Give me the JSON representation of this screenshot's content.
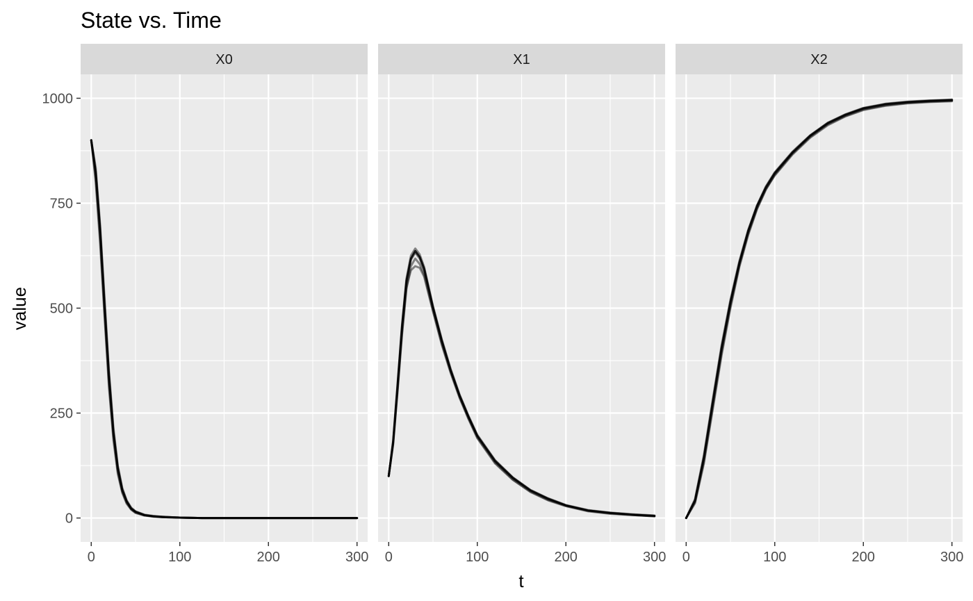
{
  "chart_data": {
    "type": "line",
    "title": "State vs. Time",
    "xlabel": "t",
    "ylabel": "value",
    "facet_layout": "1 row x 3 columns, shared y axis",
    "grid": true,
    "legend": "none",
    "x_ticks": [
      0,
      100,
      200,
      300
    ],
    "x_ticklabels": [
      "0",
      "100",
      "200",
      "300"
    ],
    "y_ticks": [
      0,
      250,
      500,
      750,
      1000
    ],
    "y_ticklabels": [
      "0",
      "250",
      "500",
      "750",
      "1000"
    ],
    "xlim": [
      -12,
      312
    ],
    "ylim": [
      -57,
      1057
    ],
    "colors": {
      "panel_background": "#ebebeb",
      "strip_background": "#d9d9d9",
      "grid": "#ffffff",
      "line": "#000000"
    },
    "panels": [
      {
        "label": "X0",
        "series": [
          {
            "x": [
              0,
              5,
              10,
              15,
              20,
              25,
              30,
              35,
              40,
              45,
              50,
              60,
              70,
              80,
              100,
              125,
              150,
              200,
              250,
              300
            ],
            "y": [
              900,
              820,
              680,
              500,
              330,
              200,
              115,
              65,
              38,
              22,
              14,
              7,
              4,
              2,
              1,
              0,
              0,
              0,
              0,
              0
            ]
          },
          {
            "x": [
              0,
              5,
              10,
              15,
              20,
              25,
              30,
              35,
              40,
              45,
              50,
              60,
              70,
              80,
              100,
              125,
              150,
              200,
              250,
              300
            ],
            "y": [
              900,
              800,
              655,
              480,
              310,
              185,
              105,
              60,
              34,
              20,
              12,
              6,
              3,
              2,
              1,
              0,
              0,
              0,
              0,
              0
            ]
          },
          {
            "x": [
              0,
              5,
              10,
              15,
              20,
              25,
              30,
              35,
              40,
              45,
              50,
              60,
              70,
              80,
              100,
              125,
              150,
              200,
              250,
              300
            ],
            "y": [
              900,
              835,
              700,
              525,
              350,
              215,
              125,
              72,
              42,
              25,
              16,
              8,
              5,
              3,
              1,
              0,
              0,
              0,
              0,
              0
            ]
          },
          {
            "x": [
              0,
              5,
              10,
              15,
              20,
              25,
              30,
              35,
              40,
              45,
              50,
              60,
              70,
              80,
              100,
              125,
              150,
              200,
              250,
              300
            ],
            "y": [
              900,
              810,
              670,
              490,
              320,
              195,
              110,
              63,
              36,
              21,
              13,
              6,
              4,
              2,
              1,
              0,
              0,
              0,
              0,
              0
            ]
          },
          {
            "x": [
              0,
              5,
              10,
              15,
              20,
              25,
              30,
              35,
              40,
              45,
              50,
              60,
              70,
              80,
              100,
              125,
              150,
              200,
              250,
              300
            ],
            "y": [
              900,
              825,
              690,
              510,
              340,
              205,
              120,
              68,
              40,
              23,
              15,
              7,
              4,
              3,
              1,
              0,
              0,
              0,
              0,
              0
            ]
          }
        ]
      },
      {
        "label": "X1",
        "series": [
          {
            "x": [
              0,
              5,
              10,
              15,
              20,
              25,
              30,
              35,
              40,
              50,
              60,
              70,
              80,
              90,
              100,
              120,
              140,
              160,
              180,
              200,
              225,
              250,
              275,
              300
            ],
            "y": [
              100,
              180,
              310,
              450,
              560,
              615,
              632,
              618,
              590,
              500,
              420,
              350,
              290,
              240,
              195,
              135,
              95,
              65,
              45,
              30,
              18,
              12,
              8,
              5
            ]
          },
          {
            "x": [
              0,
              5,
              10,
              15,
              20,
              25,
              30,
              35,
              40,
              50,
              60,
              70,
              80,
              90,
              100,
              120,
              140,
              160,
              180,
              200,
              225,
              250,
              275,
              300
            ],
            "y": [
              100,
              175,
              300,
              435,
              545,
              600,
              618,
              605,
              580,
              495,
              415,
              348,
              288,
              238,
              192,
              132,
              92,
              63,
              43,
              29,
              17,
              11,
              7,
              4
            ]
          },
          {
            "x": [
              0,
              5,
              10,
              15,
              20,
              25,
              30,
              35,
              40,
              50,
              60,
              70,
              80,
              90,
              100,
              120,
              140,
              160,
              180,
              200,
              225,
              250,
              275,
              300
            ],
            "y": [
              100,
              185,
              320,
              460,
              570,
              625,
              642,
              628,
              598,
              505,
              425,
              355,
              294,
              244,
              198,
              138,
              97,
              67,
              47,
              31,
              19,
              13,
              9,
              6
            ]
          },
          {
            "x": [
              0,
              5,
              10,
              15,
              20,
              25,
              30,
              35,
              40,
              50,
              60,
              70,
              80,
              90,
              100,
              120,
              140,
              160,
              180,
              200,
              225,
              250,
              275,
              300
            ],
            "y": [
              100,
              178,
              305,
              440,
              550,
              590,
              600,
              596,
              575,
              492,
              412,
              345,
              286,
              236,
              190,
              130,
              91,
              62,
              42,
              28,
              16,
              10,
              7,
              4
            ]
          },
          {
            "x": [
              0,
              5,
              10,
              15,
              20,
              25,
              30,
              35,
              40,
              50,
              60,
              70,
              80,
              90,
              100,
              120,
              140,
              160,
              180,
              200,
              225,
              250,
              275,
              300
            ],
            "y": [
              100,
              182,
              315,
              455,
              565,
              618,
              636,
              622,
              594,
              502,
              422,
              352,
              292,
              242,
              196,
              136,
              96,
              66,
              46,
              30,
              18,
              12,
              8,
              5
            ]
          }
        ]
      },
      {
        "label": "X2",
        "series": [
          {
            "x": [
              0,
              10,
              20,
              30,
              40,
              50,
              60,
              70,
              80,
              90,
              100,
              120,
              140,
              160,
              180,
              200,
              225,
              250,
              275,
              300
            ],
            "y": [
              0,
              40,
              140,
              270,
              400,
              510,
              605,
              680,
              740,
              785,
              820,
              870,
              910,
              940,
              960,
              975,
              985,
              990,
              993,
              995
            ]
          },
          {
            "x": [
              0,
              10,
              20,
              30,
              40,
              50,
              60,
              70,
              80,
              90,
              100,
              120,
              140,
              160,
              180,
              200,
              225,
              250,
              275,
              300
            ],
            "y": [
              0,
              35,
              130,
              258,
              388,
              500,
              598,
              674,
              736,
              782,
              818,
              868,
              908,
              938,
              958,
              973,
              983,
              989,
              992,
              994
            ]
          },
          {
            "x": [
              0,
              10,
              20,
              30,
              40,
              50,
              60,
              70,
              80,
              90,
              100,
              120,
              140,
              160,
              180,
              200,
              225,
              250,
              275,
              300
            ],
            "y": [
              0,
              45,
              150,
              282,
              412,
              520,
              612,
              686,
              745,
              790,
              824,
              873,
              912,
              942,
              962,
              977,
              987,
              992,
              995,
              997
            ]
          },
          {
            "x": [
              0,
              10,
              20,
              30,
              40,
              50,
              60,
              70,
              80,
              90,
              100,
              120,
              140,
              160,
              180,
              200,
              225,
              250,
              275,
              300
            ],
            "y": [
              0,
              38,
              135,
              265,
              395,
              506,
              602,
              678,
              738,
              784,
              816,
              866,
              906,
              936,
              957,
              972,
              982,
              988,
              991,
              993
            ]
          },
          {
            "x": [
              0,
              10,
              20,
              30,
              40,
              50,
              60,
              70,
              80,
              90,
              100,
              120,
              140,
              160,
              180,
              200,
              225,
              250,
              275,
              300
            ],
            "y": [
              0,
              42,
              145,
              276,
              406,
              515,
              608,
              684,
              744,
              788,
              822,
              871,
              911,
              941,
              961,
              976,
              986,
              991,
              994,
              996
            ]
          }
        ]
      }
    ]
  }
}
